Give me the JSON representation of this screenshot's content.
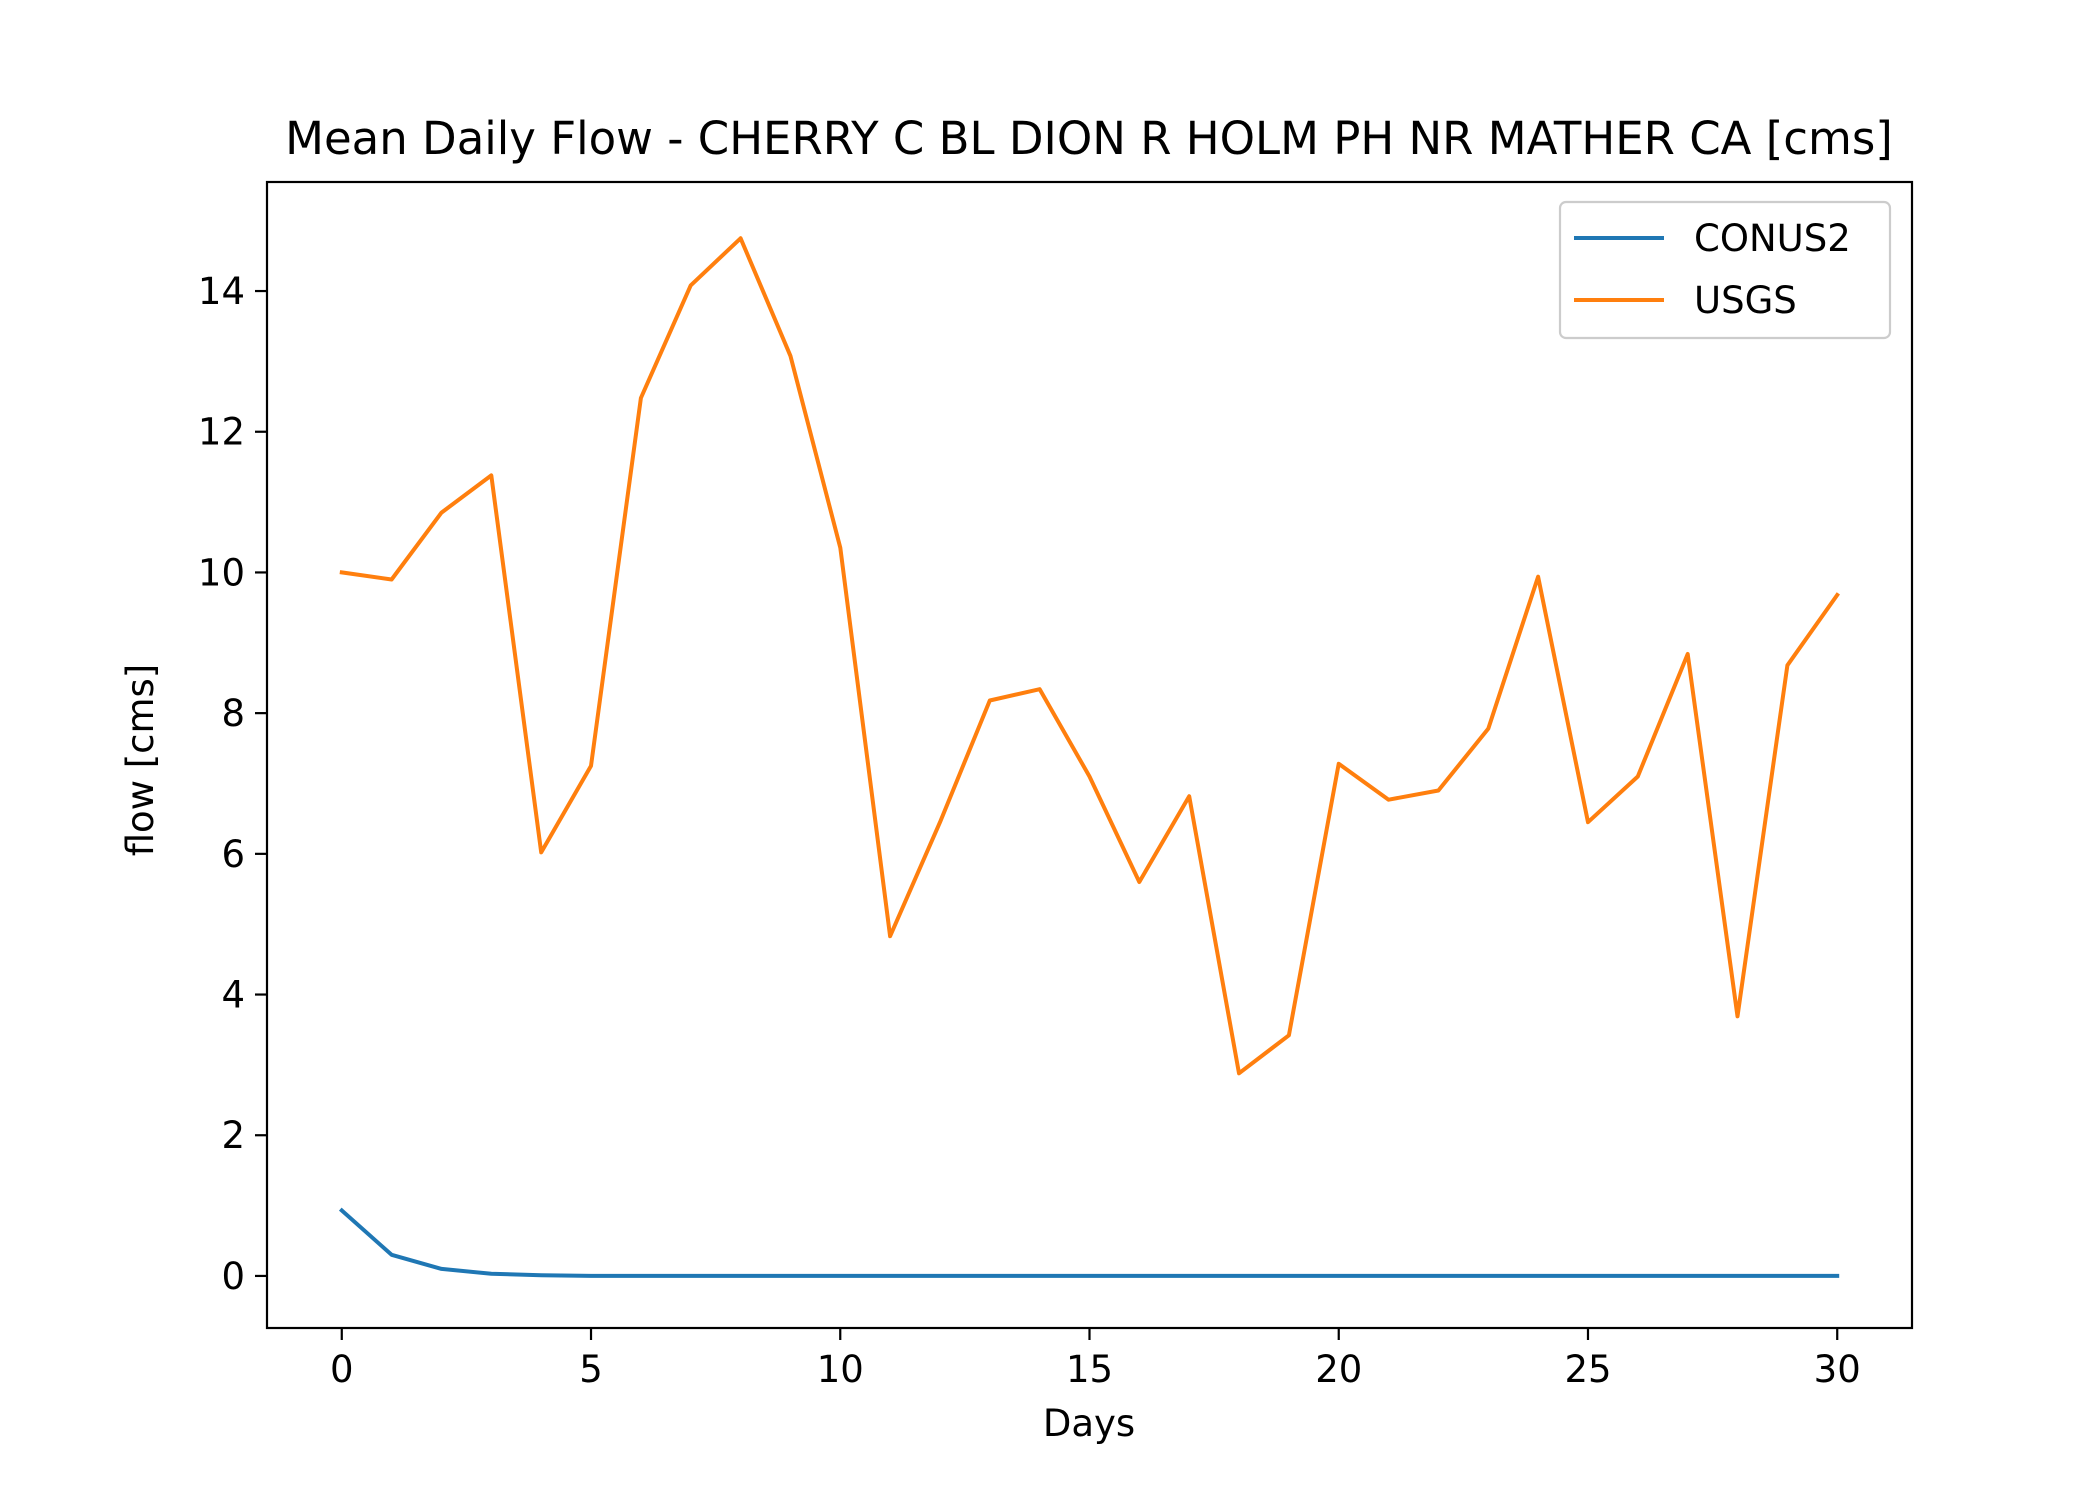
{
  "chart_data": {
    "type": "line",
    "title": "Mean Daily Flow - CHERRY C BL DION R HOLM PH NR MATHER CA [cms]",
    "xlabel": "Days",
    "ylabel": "flow [cms]",
    "xlim": [
      -1.5,
      31.5
    ],
    "ylim": [
      -0.74,
      15.55
    ],
    "xticks": [
      0,
      5,
      10,
      15,
      20,
      25,
      30
    ],
    "yticks": [
      0,
      2,
      4,
      6,
      8,
      10,
      12,
      14
    ],
    "grid": false,
    "legend_position": "top-right",
    "x": [
      0,
      1,
      2,
      3,
      4,
      5,
      6,
      7,
      8,
      9,
      10,
      11,
      12,
      13,
      14,
      15,
      16,
      17,
      18,
      19,
      20,
      21,
      22,
      23,
      24,
      25,
      26,
      27,
      28,
      29,
      30
    ],
    "series": [
      {
        "name": "CONUS2",
        "color": "#1f77b4",
        "values": [
          0.93,
          0.3,
          0.1,
          0.03,
          0.01,
          0,
          0,
          0,
          0,
          0,
          0,
          0,
          0,
          0,
          0,
          0,
          0,
          0,
          0,
          0,
          0,
          0,
          0,
          0,
          0,
          0,
          0,
          0,
          0,
          0,
          0
        ]
      },
      {
        "name": "USGS",
        "color": "#ff7f0e",
        "values": [
          10.0,
          9.9,
          10.85,
          11.38,
          6.02,
          7.25,
          12.48,
          14.08,
          14.75,
          13.08,
          10.35,
          4.83,
          6.45,
          8.18,
          8.34,
          7.1,
          5.6,
          6.82,
          2.88,
          3.42,
          7.28,
          6.77,
          6.9,
          7.78,
          9.94,
          6.45,
          7.1,
          8.84,
          3.69,
          8.68,
          9.68
        ]
      }
    ]
  }
}
